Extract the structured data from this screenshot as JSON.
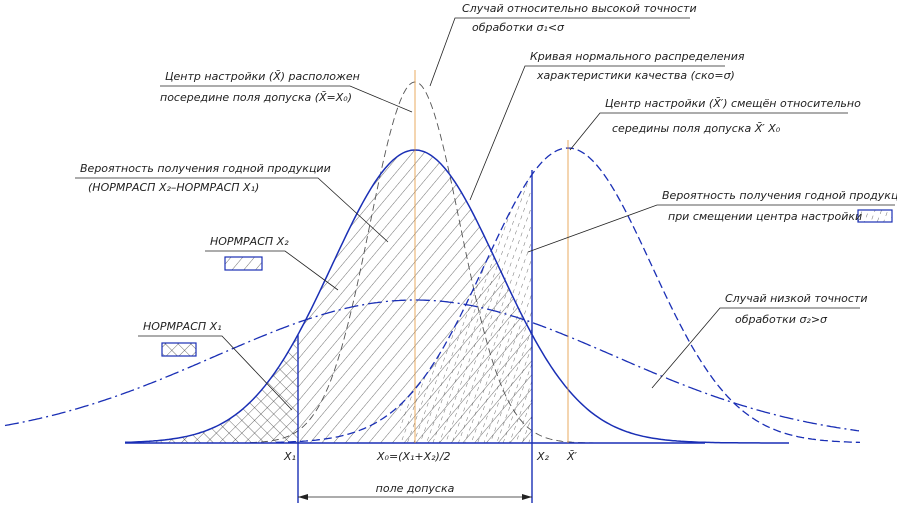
{
  "labels": {
    "high_precision": [
      "Случай относительно высокой точности",
      "обработки σ₁<σ"
    ],
    "normal_curve": [
      "Кривая нормального распределения",
      "характеристики качества (ско=σ)"
    ],
    "center_middle": [
      "Центр настройки (X̄) расположен",
      "посередине поля допуска (X̄=X₀)"
    ],
    "center_shifted": [
      "Центр настройки (X̄′) смещён относительно",
      "середины поля допуска X̄′ X₀"
    ],
    "good_probability": [
      "Вероятность получения годной продукции",
      "(НОРМРАСП X₂–НОРМРАСП X₁)"
    ],
    "good_probability_shifted": [
      "Вероятность получения годной продукции",
      "при смещении центра настройки"
    ],
    "normdist_x2": "НОРМРАСП X₂",
    "normdist_x1": "НОРМРАСП X₁",
    "low_precision": [
      "Случай низкой точности",
      "обработки σ₂>σ"
    ],
    "axis": {
      "x1": "X₁",
      "x0": "X₀=(X₁+X₂)/2",
      "x2": "X₂",
      "xshift": "X̄′"
    },
    "tolerance_field": "поле допуска"
  }
}
